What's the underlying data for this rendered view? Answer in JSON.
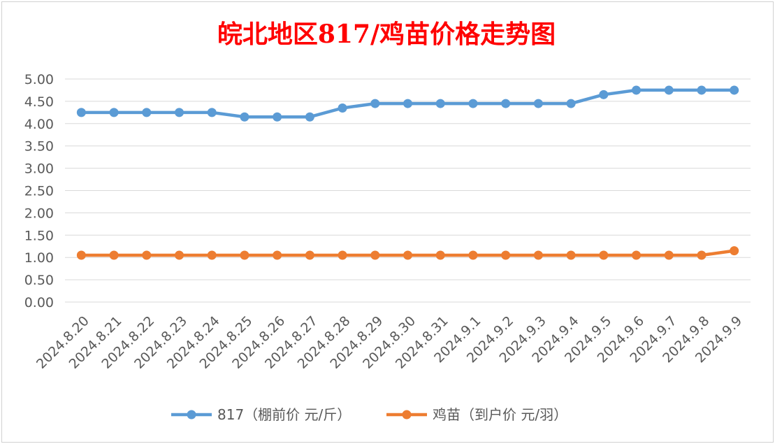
{
  "chart_data": {
    "type": "line",
    "title": "皖北地区817/鸡苗价格走势图",
    "categories": [
      "2024.8.20",
      "2024.8.21",
      "2024.8.22",
      "2024.8.23",
      "2024.8.24",
      "2024.8.25",
      "2024.8.26",
      "2024.8.27",
      "2024.8.28",
      "2024.8.29",
      "2024.8.30",
      "2024.8.31",
      "2024.9.1",
      "2024.9.2",
      "2024.9.3",
      "2024.9.4",
      "2024.9.5",
      "2024.9.6",
      "2024.9.7",
      "2024.9.8",
      "2024.9.9"
    ],
    "yticks": [
      "0.00",
      "0.50",
      "1.00",
      "1.50",
      "2.00",
      "2.50",
      "3.00",
      "3.50",
      "4.00",
      "4.50",
      "5.00"
    ],
    "ylim": [
      0,
      5
    ],
    "grid": true,
    "legend_position": "bottom",
    "series": [
      {
        "name": "817（棚前价 元/斤）",
        "color": "#5b9bd5",
        "values": [
          4.25,
          4.25,
          4.25,
          4.25,
          4.25,
          4.15,
          4.15,
          4.15,
          4.35,
          4.45,
          4.45,
          4.45,
          4.45,
          4.45,
          4.45,
          4.45,
          4.65,
          4.75,
          4.75,
          4.75,
          4.75
        ]
      },
      {
        "name": "鸡苗（到户价 元/羽）",
        "color": "#ed7d31",
        "values": [
          1.05,
          1.05,
          1.05,
          1.05,
          1.05,
          1.05,
          1.05,
          1.05,
          1.05,
          1.05,
          1.05,
          1.05,
          1.05,
          1.05,
          1.05,
          1.05,
          1.05,
          1.05,
          1.05,
          1.05,
          1.15
        ]
      }
    ]
  }
}
